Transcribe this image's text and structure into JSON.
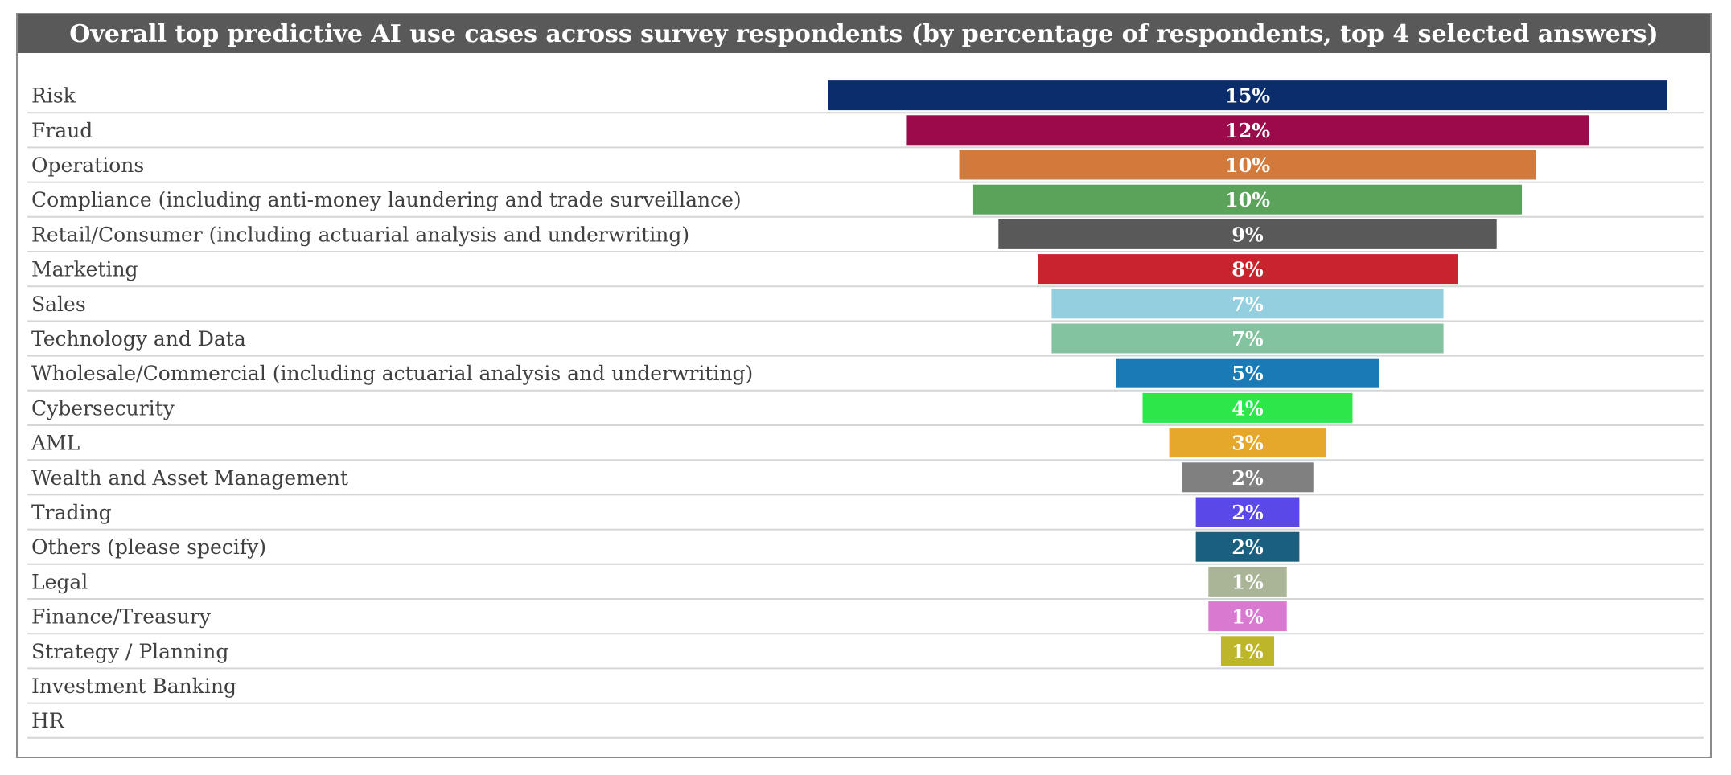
{
  "chart_data": {
    "type": "bar",
    "orientation": "horizontal-centered-funnel",
    "title": "Overall top predictive AI use cases across survey respondents (by percentage of respondents, top 4 selected answers)",
    "xlabel": "",
    "ylabel": "",
    "unit": "%",
    "categories": [
      "Risk",
      "Fraud",
      "Operations",
      "Compliance (including anti-money laundering and trade surveillance)",
      "Retail/Consumer (including actuarial analysis and underwriting)",
      "Marketing",
      "Sales",
      "Technology and Data",
      "Wholesale/Commercial (including actuarial analysis and underwriting)",
      "Cybersecurity",
      "AML",
      "Wealth and Asset Management",
      "Trading",
      "Others (please specify)",
      "Legal",
      "Finance/Treasury",
      "Strategy / Planning",
      "Investment Banking",
      "HR"
    ],
    "values": [
      15,
      12,
      10,
      10,
      9,
      8,
      7,
      7,
      5,
      4,
      3,
      2,
      2,
      2,
      1,
      1,
      1,
      0,
      0
    ],
    "bar_magnitudes": [
      15,
      12.2,
      10.3,
      9.8,
      8.9,
      7.5,
      7,
      7,
      4.7,
      3.75,
      2.8,
      2.35,
      1.85,
      1.85,
      1.4,
      1.4,
      0.95,
      0,
      0
    ],
    "labels": [
      "15%",
      "12%",
      "10%",
      "10%",
      "9%",
      "8%",
      "7%",
      "7%",
      "5%",
      "4%",
      "3%",
      "2%",
      "2%",
      "2%",
      "1%",
      "1%",
      "1%",
      "",
      ""
    ],
    "colors": [
      "#0b2d6b",
      "#9b0a4a",
      "#d17a3b",
      "#5ba35b",
      "#595959",
      "#c9232d",
      "#94cfe0",
      "#84c3a0",
      "#1a7ab5",
      "#2de64a",
      "#e6a82a",
      "#808080",
      "#5a48e8",
      "#1b5f80",
      "#aab597",
      "#d97ad1",
      "#bdb52a",
      "#ffffff",
      "#ffffff"
    ],
    "xlim": [
      0,
      15
    ],
    "grid": false,
    "legend": "none"
  }
}
